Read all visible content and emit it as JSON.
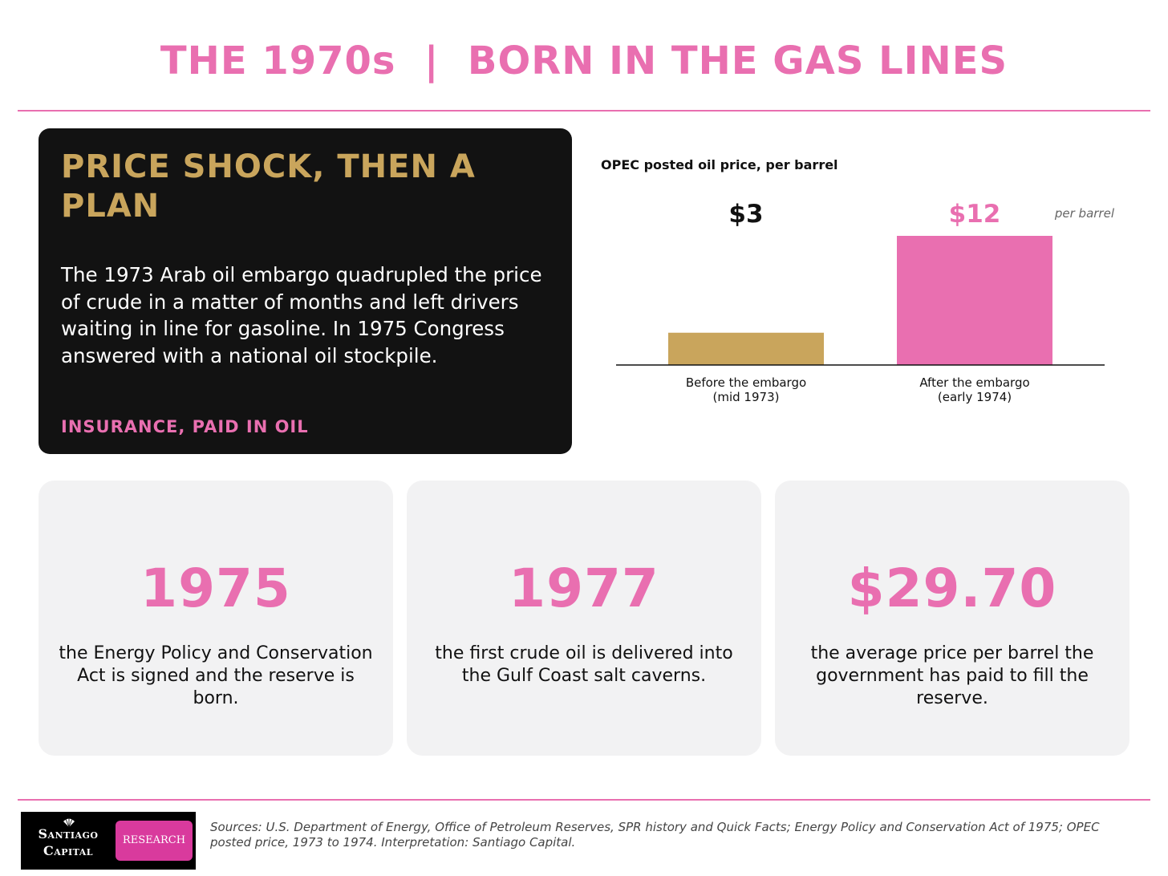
{
  "header": {
    "title": "THE 1970s  |  BORN IN THE GAS LINES"
  },
  "feature_card": {
    "heading": "PRICE SHOCK, THEN A PLAN",
    "body": "The 1973 Arab oil embargo quadrupled the price of crude in a matter of months and left drivers waiting in line for gasoline. In 1975 Congress answered with a national oil stockpile.",
    "tag": "INSURANCE, PAID IN OIL"
  },
  "chart_data": {
    "type": "bar",
    "title": "OPEC posted oil price, per barrel",
    "unit_note": "per barrel",
    "categories": [
      [
        "Before the embargo",
        "(mid 1973)"
      ],
      [
        "After the embargo",
        "(early 1974)"
      ]
    ],
    "values": [
      3,
      12
    ],
    "value_labels": [
      "$3",
      "$12"
    ],
    "bar_colors": [
      "#c9a55c",
      "#e96fb0"
    ],
    "label_colors": [
      "#111111",
      "#e96fb0"
    ],
    "ylim": [
      0,
      12
    ],
    "grid": false,
    "legend": "none"
  },
  "stats": [
    {
      "value": "1975",
      "desc": "the Energy Policy and Conservation Act is signed and the reserve is born."
    },
    {
      "value": "1977",
      "desc": "the first crude oil is delivered into the Gulf Coast salt caverns."
    },
    {
      "value": "$29.70",
      "desc": "the average price per barrel the government has paid to fill the reserve."
    }
  ],
  "footer": {
    "logo_line1": "Santiago",
    "logo_line2": "Capital",
    "logo_badge": "RESEARCH",
    "logo_icon": "shell-icon",
    "sources": "Sources: U.S. Department of Energy, Office of Petroleum Reserves, SPR history and Quick Facts; Energy Policy and Conservation Act of 1975; OPEC posted price, 1973 to 1974. Interpretation: Santiago Capital."
  },
  "colors": {
    "accent_pink": "#e96fb0",
    "accent_gold": "#c9a55c",
    "card_dark": "#121212",
    "card_light": "#f2f2f3"
  }
}
